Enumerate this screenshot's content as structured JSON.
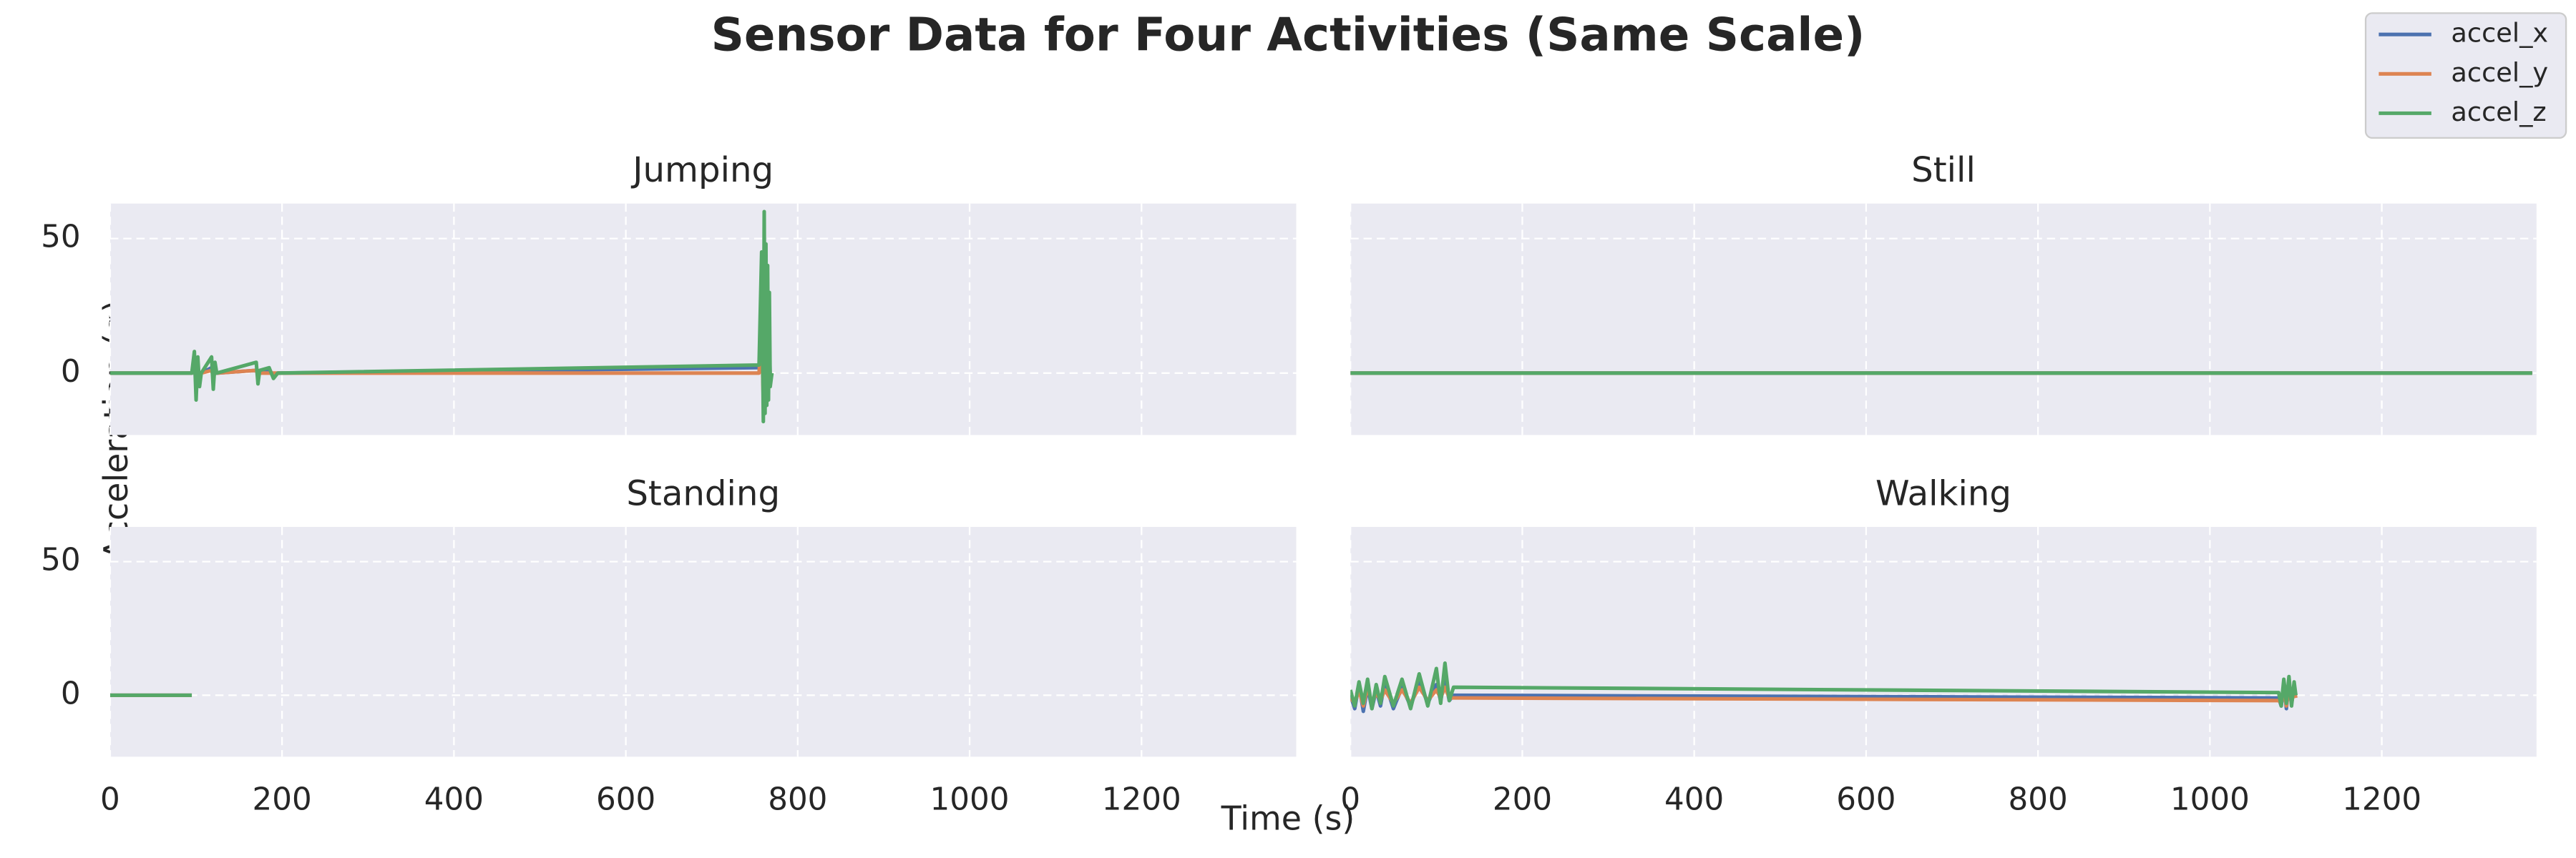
{
  "title": "Sensor Data for Four Activities (Same Scale)",
  "xlabel": "Time (s)",
  "ylabel": "Acceleration (g)",
  "legend": {
    "position": "upper right",
    "series": [
      {
        "name": "accel_x",
        "color": "#4c72b0"
      },
      {
        "name": "accel_y",
        "color": "#dd8452"
      },
      {
        "name": "accel_z",
        "color": "#55a868"
      }
    ]
  },
  "xlim": [
    0,
    1380
  ],
  "ylim": [
    -23,
    63
  ],
  "xticks": [
    0,
    200,
    400,
    600,
    800,
    1000,
    1200
  ],
  "yticks": [
    0,
    50
  ],
  "grid": true,
  "chart_data": [
    {
      "type": "line",
      "title": "Jumping",
      "x": [
        0,
        50,
        95,
        98,
        100,
        102,
        104,
        106,
        118,
        120,
        122,
        124,
        170,
        172,
        174,
        185,
        190,
        195,
        755,
        758,
        760,
        761,
        762,
        763,
        764,
        765,
        766,
        767,
        768,
        770
      ],
      "series": [
        {
          "values": [
            0,
            0,
            0,
            3,
            -4,
            2,
            -2,
            0,
            2,
            -2,
            1,
            0,
            1,
            -1,
            0,
            1,
            -1,
            0,
            2,
            20,
            -8,
            25,
            -6,
            20,
            -5,
            18,
            -4,
            12,
            -2,
            0
          ]
        },
        {
          "values": [
            0,
            0,
            0,
            2,
            -3,
            1,
            -1,
            0,
            1,
            -1,
            1,
            0,
            1,
            -1,
            0,
            0,
            0,
            0,
            0,
            15,
            -10,
            18,
            -8,
            15,
            -6,
            12,
            -5,
            8,
            -2,
            0
          ]
        },
        {
          "values": [
            0,
            0,
            0,
            8,
            -10,
            6,
            -5,
            0,
            6,
            -6,
            4,
            0,
            4,
            -4,
            1,
            2,
            -2,
            0,
            3,
            45,
            -18,
            60,
            -15,
            48,
            -12,
            40,
            -10,
            30,
            -5,
            0
          ]
        }
      ]
    },
    {
      "type": "line",
      "title": "Still",
      "x": [
        0,
        200,
        400,
        600,
        800,
        1000,
        1200,
        1375
      ],
      "series": [
        {
          "values": [
            0,
            0,
            0,
            0,
            0,
            0,
            0,
            0
          ]
        },
        {
          "values": [
            0,
            0,
            0,
            0,
            0,
            0,
            0,
            0
          ]
        },
        {
          "values": [
            0,
            0,
            0,
            0,
            0,
            0,
            0,
            0
          ]
        }
      ]
    },
    {
      "type": "line",
      "title": "Standing",
      "x": [
        0,
        20,
        40,
        60,
        80,
        95
      ],
      "series": [
        {
          "values": [
            0,
            0,
            0,
            0,
            0,
            0
          ]
        },
        {
          "values": [
            0,
            0,
            0,
            0,
            0,
            0
          ]
        },
        {
          "values": [
            0,
            0,
            0,
            0,
            0,
            0
          ]
        }
      ]
    },
    {
      "type": "line",
      "title": "Walking",
      "x": [
        0,
        5,
        10,
        15,
        20,
        25,
        30,
        35,
        40,
        50,
        60,
        70,
        80,
        90,
        100,
        105,
        110,
        115,
        120,
        1080,
        1083,
        1086,
        1089,
        1092,
        1095,
        1098,
        1100
      ],
      "series": [
        {
          "values": [
            0,
            -5,
            4,
            -6,
            3,
            -5,
            2,
            -4,
            5,
            -5,
            3,
            -4,
            5,
            -3,
            4,
            -2,
            6,
            -2,
            0,
            -1,
            -4,
            4,
            -5,
            5,
            -3,
            3,
            0
          ]
        },
        {
          "values": [
            -1,
            -3,
            2,
            -4,
            3,
            -3,
            1,
            -2,
            2,
            -3,
            2,
            -3,
            3,
            -2,
            2,
            -1,
            3,
            -1,
            -1,
            -2,
            -3,
            2,
            -4,
            3,
            -3,
            2,
            -1
          ]
        },
        {
          "values": [
            2,
            -4,
            5,
            -3,
            6,
            -5,
            4,
            -3,
            7,
            -4,
            6,
            -5,
            8,
            -4,
            10,
            -3,
            12,
            -2,
            3,
            1,
            -4,
            6,
            -3,
            7,
            -4,
            5,
            0
          ]
        }
      ]
    }
  ]
}
